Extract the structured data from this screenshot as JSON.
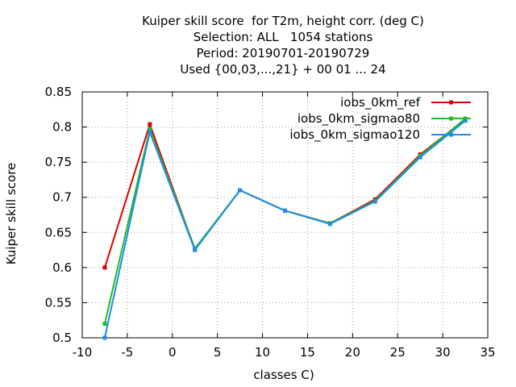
{
  "chart_data": {
    "type": "line",
    "title_lines": [
      "Kuiper skill score  for T2m, height corr. (deg C)",
      "Selection: ALL   1054 stations",
      "Period: 20190701-20190729",
      "Used {00,03,...,21} + 00 01 ... 24"
    ],
    "xlabel": "classes C)",
    "ylabel": "Kuiper skill score",
    "xlim": [
      -10,
      35
    ],
    "ylim": [
      0.5,
      0.85
    ],
    "xticks": [
      -10,
      -5,
      0,
      5,
      10,
      15,
      20,
      25,
      30,
      35
    ],
    "yticks": [
      0.5,
      0.55,
      0.6,
      0.65,
      0.7,
      0.75,
      0.8,
      0.85
    ],
    "grid": true,
    "legend_position": "top-right",
    "x": [
      -7.5,
      -2.5,
      2.5,
      7.5,
      12.5,
      17.5,
      22.5,
      27.5,
      32.5
    ],
    "series": [
      {
        "name": "iobs_0km_ref",
        "color": "#dd0000",
        "values": [
          0.6,
          0.804,
          0.626,
          0.71,
          0.681,
          0.663,
          0.697,
          0.761,
          0.811
        ]
      },
      {
        "name": "iobs_0km_sigmao80",
        "color": "#22bb22",
        "values": [
          0.52,
          0.797,
          0.627,
          0.71,
          0.681,
          0.663,
          0.695,
          0.759,
          0.812
        ]
      },
      {
        "name": "iobs_0km_sigmao120",
        "color": "#1e8ee6",
        "values": [
          0.5,
          0.793,
          0.625,
          0.71,
          0.681,
          0.662,
          0.694,
          0.757,
          0.809
        ]
      }
    ]
  }
}
